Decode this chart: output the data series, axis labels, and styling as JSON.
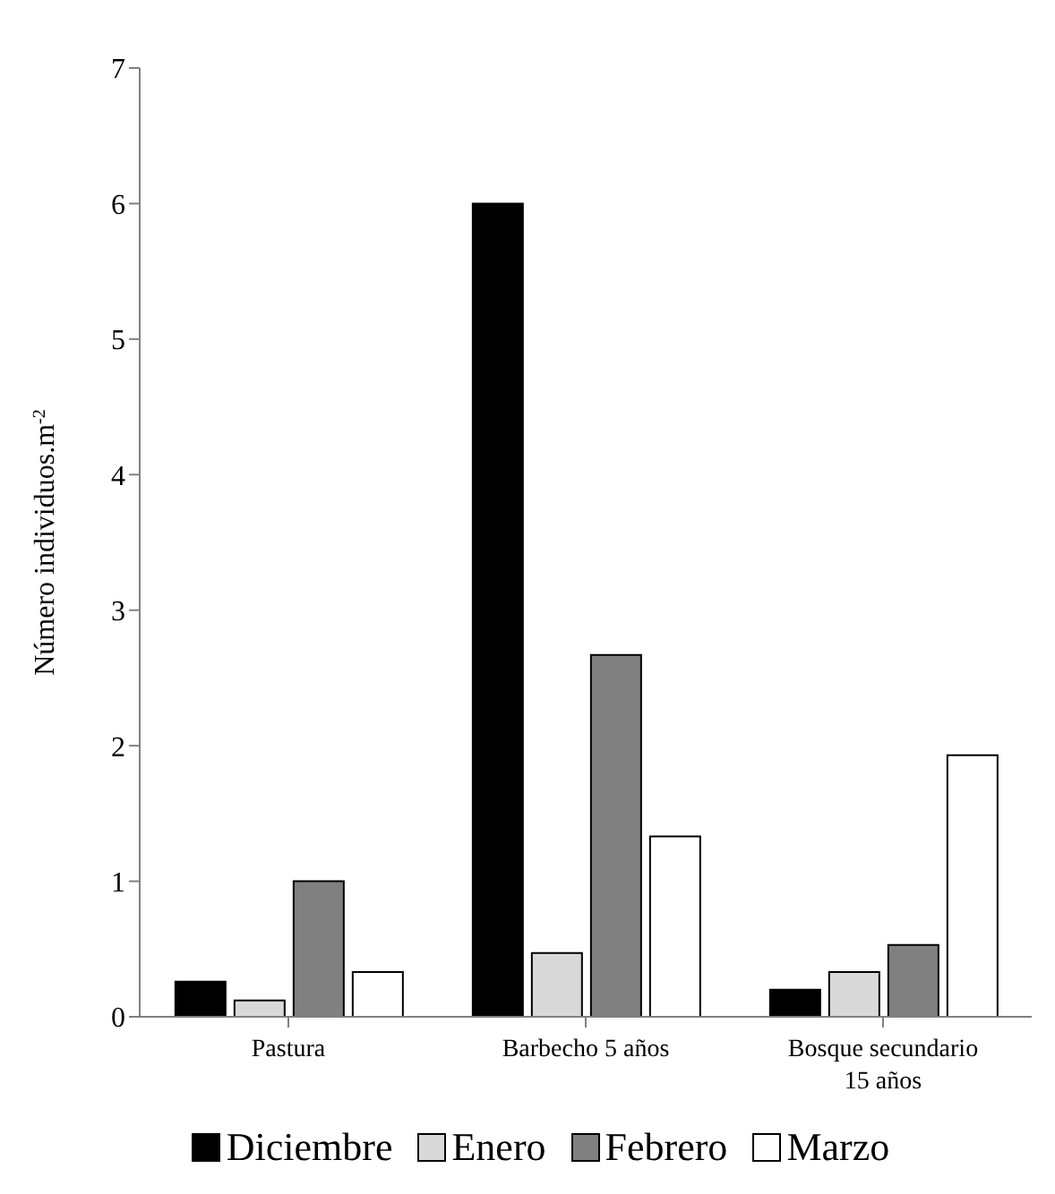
{
  "chart_data": {
    "type": "bar",
    "ylabel": "Número individuos.m$^{-2}$",
    "categories": [
      "Pastura",
      "Barbecho 5 años",
      "Bosque secundario 15 años"
    ],
    "series": [
      {
        "name": "Diciembre",
        "color": "#000000",
        "values": [
          0.26,
          6,
          0.2
        ]
      },
      {
        "name": "Enero",
        "color": "#d9d9d9",
        "values": [
          0.12,
          0.47,
          0.33
        ]
      },
      {
        "name": "Febrero",
        "color": "#808080",
        "values": [
          1.0,
          2.67,
          0.53
        ]
      },
      {
        "name": "Marzo",
        "color": "#ffffff",
        "values": [
          0.33,
          1.33,
          1.93
        ]
      }
    ],
    "ylim": [
      0,
      7
    ],
    "yticks": [
      0,
      1,
      2,
      3,
      4,
      5,
      6,
      7
    ],
    "grid": false,
    "legend": "bottom"
  }
}
